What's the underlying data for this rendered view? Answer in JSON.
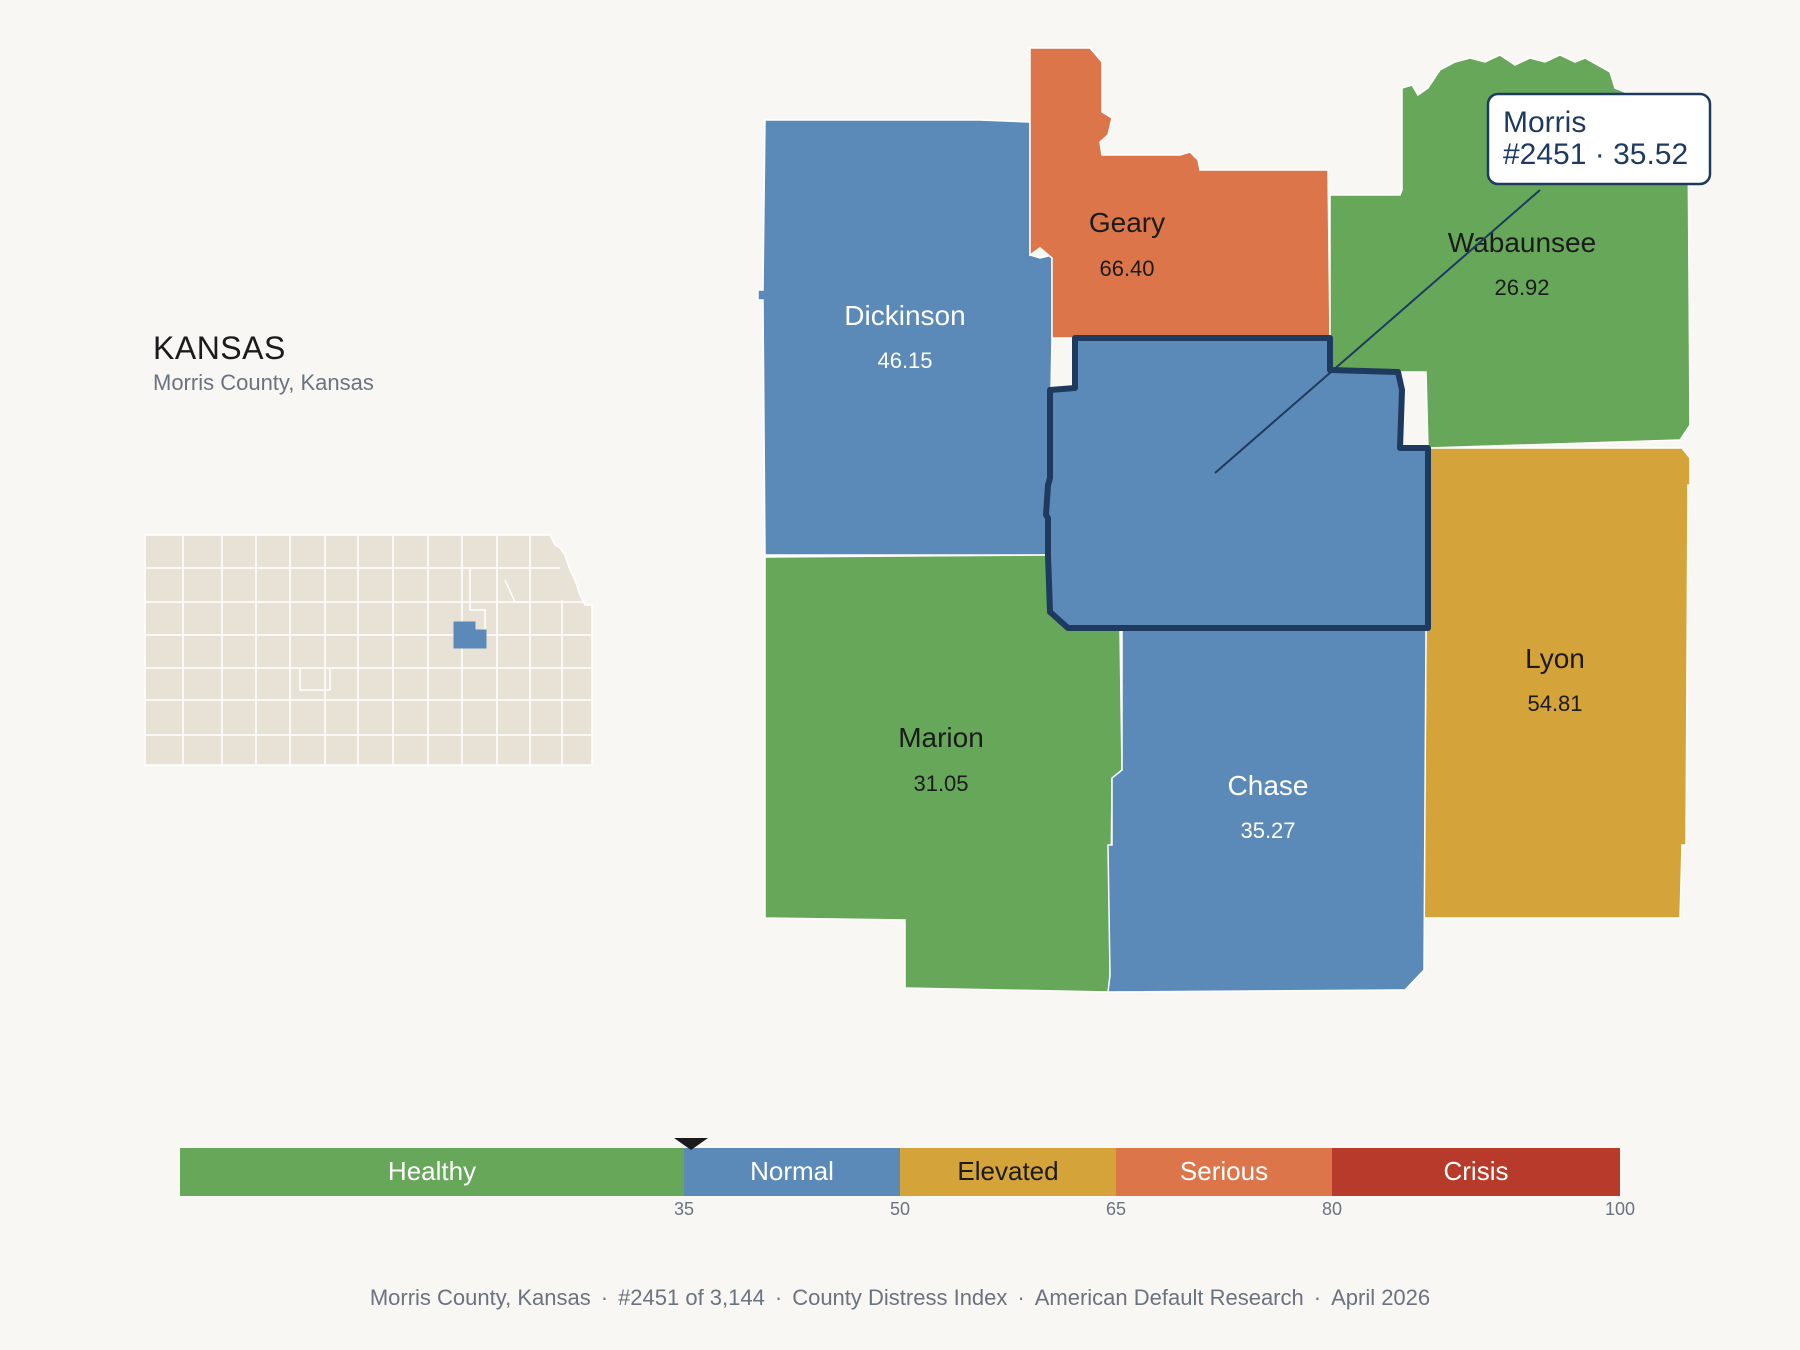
{
  "header": {
    "state": "KANSAS",
    "subtitle": "Morris County, Kansas"
  },
  "callout": {
    "line1": "Morris",
    "line2": "#2451 · 35.52"
  },
  "counties": [
    {
      "name": "Dickinson",
      "value": "46.15",
      "band": "Normal"
    },
    {
      "name": "Geary",
      "value": "66.40",
      "band": "Serious"
    },
    {
      "name": "Wabaunsee",
      "value": "26.92",
      "band": "Healthy"
    },
    {
      "name": "Marion",
      "value": "31.05",
      "band": "Healthy"
    },
    {
      "name": "Chase",
      "value": "35.27",
      "band": "Normal"
    },
    {
      "name": "Lyon",
      "value": "54.81",
      "band": "Elevated"
    }
  ],
  "selected_county": {
    "name": "Morris",
    "rank": 2451,
    "value": 35.52,
    "band": "Normal"
  },
  "legend": {
    "segments": [
      {
        "label": "Healthy",
        "color": "#67a75a"
      },
      {
        "label": "Normal",
        "color": "#5b89b8"
      },
      {
        "label": "Elevated",
        "color": "#d4a33a"
      },
      {
        "label": "Serious",
        "color": "#dc764a"
      },
      {
        "label": "Crisis",
        "color": "#b83a2a"
      }
    ],
    "ticks": [
      "35",
      "50",
      "65",
      "80",
      "100"
    ],
    "marker_value": 35.52
  },
  "footer": {
    "items": [
      "Morris County, Kansas",
      "#2451 of 3,144",
      "County Distress Index",
      "American Default Research",
      "April 2026"
    ]
  },
  "colors": {
    "background": "#f9f7f3",
    "highlight_outline": "#1e3a5f",
    "inset_fill": "#e8e2d6"
  }
}
